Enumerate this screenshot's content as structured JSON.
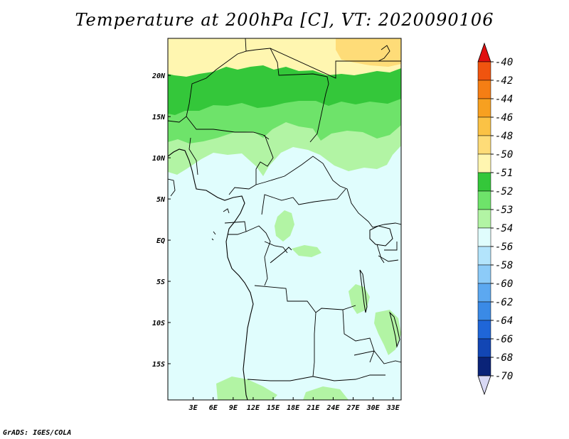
{
  "title": "Temperature at 200hPa [C], VT: 2020090106",
  "credit": "GrADS: IGES/COLA",
  "map": {
    "lon_range": [
      -0.8,
      34.2
    ],
    "lat_range": [
      -19.4,
      24.5
    ],
    "lon_ticks": [
      {
        "value": 3,
        "label": "3E"
      },
      {
        "value": 6,
        "label": "6E"
      },
      {
        "value": 9,
        "label": "9E"
      },
      {
        "value": 12,
        "label": "12E"
      },
      {
        "value": 15,
        "label": "15E"
      },
      {
        "value": 18,
        "label": "18E"
      },
      {
        "value": 21,
        "label": "21E"
      },
      {
        "value": 24,
        "label": "24E"
      },
      {
        "value": 27,
        "label": "27E"
      },
      {
        "value": 30,
        "label": "30E"
      },
      {
        "value": 33,
        "label": "33E"
      }
    ],
    "lat_ticks": [
      {
        "value": 20,
        "label": "20N"
      },
      {
        "value": 15,
        "label": "15N"
      },
      {
        "value": 10,
        "label": "10N"
      },
      {
        "value": 5,
        "label": "5N"
      },
      {
        "value": 0,
        "label": "EQ"
      },
      {
        "value": -5,
        "label": "5S"
      },
      {
        "value": -10,
        "label": "10S"
      },
      {
        "value": -15,
        "label": "15S"
      }
    ]
  },
  "colorbar": {
    "levels": [
      {
        "label": "-40",
        "color": "#e8280a"
      },
      {
        "label": "-42",
        "color": "#f0540f"
      },
      {
        "label": "-44",
        "color": "#f57e14"
      },
      {
        "label": "-46",
        "color": "#f7a020"
      },
      {
        "label": "-48",
        "color": "#fbc245"
      },
      {
        "label": "-50",
        "color": "#fedc78"
      },
      {
        "label": "-51",
        "color": "#fff6b0"
      },
      {
        "label": "-52",
        "color": "#34c73a"
      },
      {
        "label": "-53",
        "color": "#6ee36a"
      },
      {
        "label": "-54",
        "color": "#b2f4a4"
      },
      {
        "label": "-56",
        "color": "#e0fdfd"
      },
      {
        "label": "-58",
        "color": "#b3e4fc"
      },
      {
        "label": "-60",
        "color": "#8ccbf8"
      },
      {
        "label": "-62",
        "color": "#5ca8f0"
      },
      {
        "label": "-64",
        "color": "#3a8ae6"
      },
      {
        "label": "-66",
        "color": "#1f66d8"
      },
      {
        "label": "-68",
        "color": "#1246b4"
      },
      {
        "label": "-70",
        "color": "#0a2378"
      }
    ],
    "top_color": "#e01010",
    "bottom_color": "#d8d8f4"
  }
}
